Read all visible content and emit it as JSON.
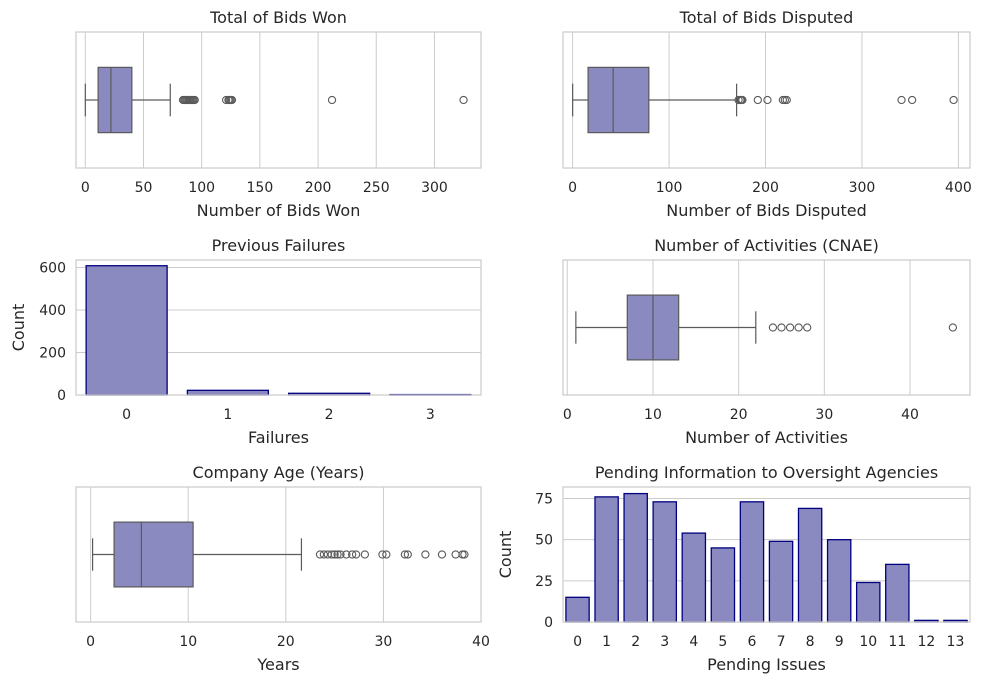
{
  "chart_data": [
    {
      "type": "box",
      "title": "Total of Bids Won",
      "xlabel": "Number of Bids Won",
      "ylabel": "",
      "xlim": [
        -8,
        340
      ],
      "xticks": [
        0,
        50,
        100,
        150,
        200,
        250,
        300
      ],
      "grid": true,
      "box": {
        "whisker_low": 0,
        "q1": 11,
        "median": 22,
        "q3": 40,
        "whisker_high": 73
      },
      "fliers": [
        84,
        85,
        86,
        87,
        88,
        89,
        90,
        91,
        92,
        93,
        94,
        121,
        123,
        124,
        125,
        126,
        212,
        325
      ]
    },
    {
      "type": "box",
      "title": "Total of Bids Disputed",
      "xlabel": "Number of Bids Disputed",
      "ylabel": "",
      "xlim": [
        -10,
        412
      ],
      "xticks": [
        0,
        100,
        200,
        300,
        400
      ],
      "grid": true,
      "box": {
        "whisker_low": 0,
        "q1": 16,
        "median": 42,
        "q3": 79,
        "whisker_high": 170
      },
      "fliers": [
        172,
        174,
        175,
        176,
        192,
        202,
        218,
        220,
        222,
        341,
        352,
        395
      ]
    },
    {
      "type": "bar",
      "title": "Previous Failures",
      "xlabel": "Failures",
      "ylabel": "Count",
      "categories": [
        "0",
        "1",
        "2",
        "3"
      ],
      "values": [
        608,
        22,
        8,
        2
      ],
      "ylim": [
        0,
        635
      ],
      "yticks": [
        0,
        200,
        400,
        600
      ],
      "grid": true
    },
    {
      "type": "box",
      "title": "Number of Activities (CNAE)",
      "xlabel": "Number of Activities",
      "ylabel": "",
      "xlim": [
        -0.5,
        47
      ],
      "xticks": [
        0,
        10,
        20,
        30,
        40
      ],
      "grid": true,
      "box": {
        "whisker_low": 1,
        "q1": 7,
        "median": 10,
        "q3": 13,
        "whisker_high": 22
      },
      "fliers": [
        24,
        25,
        26,
        27,
        28,
        45
      ]
    },
    {
      "type": "box",
      "title": "Company Age (Years)",
      "xlabel": "Years",
      "ylabel": "",
      "xlim": [
        -1.5,
        40
      ],
      "xticks": [
        0,
        10,
        20,
        30,
        40
      ],
      "grid": true,
      "box": {
        "whisker_low": 0.2,
        "q1": 2.4,
        "median": 5.2,
        "q3": 10.5,
        "whisker_high": 21.6
      },
      "fliers": [
        23.5,
        23.9,
        24.3,
        24.7,
        25.0,
        25.3,
        25.6,
        26.2,
        26.8,
        27.2,
        28.1,
        29.9,
        30.3,
        32.2,
        32.5,
        34.3,
        36.0,
        37.4,
        38.1,
        38.3
      ]
    },
    {
      "type": "bar",
      "title": "Pending Information to Oversight Agencies",
      "xlabel": "Pending Issues",
      "ylabel": "Count",
      "categories": [
        "0",
        "1",
        "2",
        "3",
        "4",
        "5",
        "6",
        "7",
        "8",
        "9",
        "10",
        "11",
        "12",
        "13"
      ],
      "values": [
        15,
        76,
        78,
        73,
        54,
        45,
        73,
        49,
        69,
        50,
        24,
        35,
        1,
        1
      ],
      "ylim": [
        0,
        82
      ],
      "yticks": [
        0,
        25,
        50,
        75
      ],
      "grid": true
    }
  ]
}
